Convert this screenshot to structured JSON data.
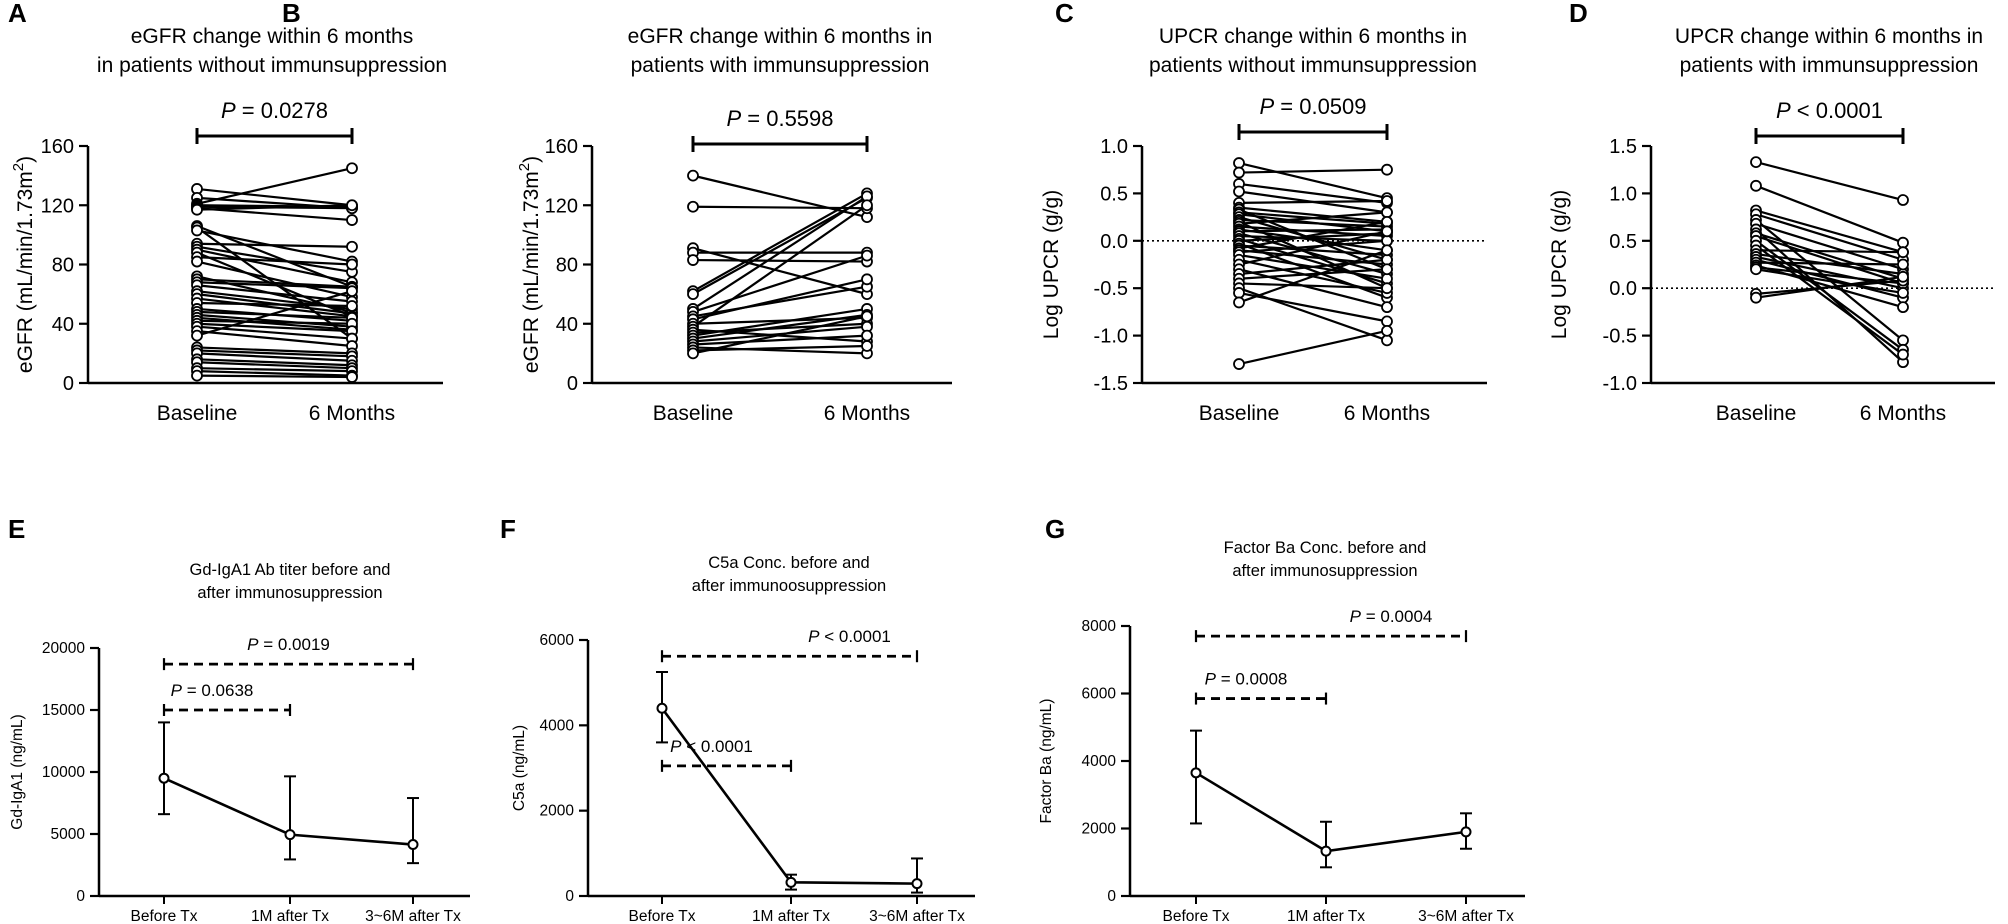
{
  "chart_data": [
    {
      "panel": "A",
      "type": "paired-line",
      "title_lines": [
        "eGFR change  within 6 months",
        "in patients without immunsuppression"
      ],
      "ylabel": "eGFR (mL/min/1.73m",
      "ylabel_sup": "2",
      "ylabel_end": ")",
      "ylim": [
        0,
        160
      ],
      "yticks": [
        "0",
        "40",
        "80",
        "120",
        "160"
      ],
      "categories": [
        "Baseline",
        "6 Months"
      ],
      "p_prefix": "P",
      "p_rest": " = 0.0278",
      "pairs": [
        [
          131,
          120
        ],
        [
          125,
          118
        ],
        [
          121,
          145
        ],
        [
          120,
          119
        ],
        [
          119,
          118
        ],
        [
          118,
          110
        ],
        [
          117,
          120
        ],
        [
          106,
          65
        ],
        [
          105,
          30
        ],
        [
          103,
          82
        ],
        [
          94,
          92
        ],
        [
          92,
          75
        ],
        [
          90,
          68
        ],
        [
          88,
          45
        ],
        [
          85,
          80
        ],
        [
          82,
          58
        ],
        [
          72,
          48
        ],
        [
          70,
          65
        ],
        [
          68,
          64
        ],
        [
          66,
          55
        ],
        [
          62,
          50
        ],
        [
          60,
          47
        ],
        [
          57,
          45
        ],
        [
          54,
          52
        ],
        [
          50,
          42
        ],
        [
          48,
          44
        ],
        [
          46,
          38
        ],
        [
          44,
          36
        ],
        [
          42,
          40
        ],
        [
          40,
          35
        ],
        [
          38,
          30
        ],
        [
          35,
          25
        ],
        [
          32,
          62
        ],
        [
          24,
          20
        ],
        [
          22,
          18
        ],
        [
          20,
          15
        ],
        [
          16,
          12
        ],
        [
          14,
          10
        ],
        [
          10,
          8
        ],
        [
          8,
          5
        ],
        [
          5,
          4
        ]
      ]
    },
    {
      "panel": "B",
      "type": "paired-line",
      "title_lines": [
        "eGFR change  within 6 months in",
        "patients  with immunsuppression"
      ],
      "ylabel": "eGFR (mL/min/1.73m",
      "ylabel_sup": "2",
      "ylabel_end": ")",
      "ylim": [
        0,
        160
      ],
      "yticks": [
        "0",
        "40",
        "80",
        "120",
        "160"
      ],
      "categories": [
        "Baseline",
        "6 Months"
      ],
      "p_prefix": "P",
      "p_rest": " = 0.5598",
      "pairs": [
        [
          140,
          112
        ],
        [
          119,
          118
        ],
        [
          91,
          60
        ],
        [
          88,
          88
        ],
        [
          83,
          82
        ],
        [
          62,
          128
        ],
        [
          60,
          125
        ],
        [
          50,
          126
        ],
        [
          48,
          86
        ],
        [
          45,
          65
        ],
        [
          43,
          70
        ],
        [
          40,
          44
        ],
        [
          38,
          120
        ],
        [
          36,
          28
        ],
        [
          34,
          40
        ],
        [
          32,
          50
        ],
        [
          30,
          46
        ],
        [
          28,
          38
        ],
        [
          26,
          32
        ],
        [
          24,
          20
        ],
        [
          22,
          25
        ],
        [
          20,
          45
        ]
      ]
    },
    {
      "panel": "C",
      "type": "paired-line",
      "title_lines": [
        "UPCR change  within 6 months in",
        "patients without immunsuppression"
      ],
      "ylabel": "Log UPCR (g/g)",
      "ylim": [
        -1.5,
        1.0
      ],
      "yticks": [
        "-1.5",
        "-1.0",
        "-0.5",
        "0.0",
        "0.5",
        "1.0"
      ],
      "categories": [
        "Baseline",
        "6 Months"
      ],
      "reference_line": 0,
      "p_prefix": "P",
      "p_rest": " = 0.0509",
      "pairs": [
        [
          0.82,
          0.45
        ],
        [
          0.72,
          0.75
        ],
        [
          0.6,
          0.4
        ],
        [
          0.52,
          0.3
        ],
        [
          0.4,
          0.42
        ],
        [
          0.35,
          0.2
        ],
        [
          0.33,
          -0.3
        ],
        [
          0.3,
          0.18
        ],
        [
          0.28,
          0.1
        ],
        [
          0.25,
          -0.2
        ],
        [
          0.22,
          0.15
        ],
        [
          0.2,
          -0.5
        ],
        [
          0.18,
          0.3
        ],
        [
          0.15,
          0.05
        ],
        [
          0.12,
          -0.1
        ],
        [
          0.1,
          0.12
        ],
        [
          0.08,
          -0.35
        ],
        [
          0.05,
          0.0
        ],
        [
          0.02,
          -0.45
        ],
        [
          0.0,
          0.08
        ],
        [
          -0.03,
          -0.6
        ],
        [
          -0.05,
          -0.15
        ],
        [
          -0.08,
          0.2
        ],
        [
          -0.1,
          -0.25
        ],
        [
          -0.12,
          0.0
        ],
        [
          -0.15,
          -0.4
        ],
        [
          -0.2,
          -0.55
        ],
        [
          -0.25,
          0.1
        ],
        [
          -0.3,
          -0.7
        ],
        [
          -0.35,
          -0.2
        ],
        [
          -0.4,
          -0.3
        ],
        [
          -0.45,
          -0.5
        ],
        [
          -0.5,
          -1.05
        ],
        [
          -0.55,
          -0.85
        ],
        [
          -0.65,
          -0.1
        ],
        [
          -1.3,
          -0.95
        ]
      ]
    },
    {
      "panel": "D",
      "type": "paired-line",
      "title_lines": [
        "UPCR change  within 6 months in",
        "patients  with immunsuppression"
      ],
      "ylabel": "Log UPCR (g/g)",
      "ylim": [
        -1.0,
        1.5
      ],
      "yticks": [
        "-1.0",
        "-0.5",
        "0.0",
        "0.5",
        "1.0",
        "1.5"
      ],
      "categories": [
        "Baseline",
        "6 Months"
      ],
      "reference_line": 0,
      "p_prefix": "P",
      "p_rest": " < 0.0001",
      "pairs": [
        [
          1.33,
          0.93
        ],
        [
          1.08,
          0.48
        ],
        [
          0.82,
          0.38
        ],
        [
          0.78,
          0.3
        ],
        [
          0.72,
          -0.55
        ],
        [
          0.68,
          0.2
        ],
        [
          0.62,
          -0.78
        ],
        [
          0.58,
          0.1
        ],
        [
          0.55,
          0.05
        ],
        [
          0.5,
          -0.65
        ],
        [
          0.45,
          -0.7
        ],
        [
          0.4,
          0.38
        ],
        [
          0.36,
          0.15
        ],
        [
          0.33,
          0.0
        ],
        [
          0.3,
          -0.1
        ],
        [
          0.27,
          0.25
        ],
        [
          0.24,
          -0.2
        ],
        [
          0.22,
          0.05
        ],
        [
          0.2,
          -0.05
        ],
        [
          -0.06,
          0.08
        ],
        [
          -0.1,
          0.12
        ]
      ]
    },
    {
      "panel": "E",
      "type": "line-errorbar",
      "title_lines": [
        "Gd-IgA1 Ab titer before and",
        "after immunosuppression"
      ],
      "ylabel": "Gd-IgA1 (ng/mL)",
      "ylim": [
        0,
        20000
      ],
      "yticks": [
        "0",
        "5000",
        "10000",
        "15000",
        "20000"
      ],
      "categories": [
        "Before Tx",
        "1M after Tx",
        "3~6M after Tx"
      ],
      "values": [
        9500,
        4950,
        4150
      ],
      "err_low": [
        6600,
        2950,
        2650
      ],
      "err_high": [
        14000,
        9650,
        7900
      ],
      "brackets": [
        {
          "from": 0,
          "to": 2,
          "y": 18700,
          "p_prefix": "P",
          "p_rest": " = 0.0019"
        },
        {
          "from": 0,
          "to": 1,
          "y": 15000,
          "p_prefix": "P",
          "p_rest": " = 0.0638"
        }
      ]
    },
    {
      "panel": "F",
      "type": "line-errorbar",
      "title_lines": [
        "C5a Conc. before and",
        "after immunoosuppression"
      ],
      "ylabel": "C5a (ng/mL)",
      "ylim": [
        0,
        6000
      ],
      "yticks": [
        "0",
        "2000",
        "4000",
        "6000"
      ],
      "categories": [
        "Before Tx",
        "1M after Tx",
        "3~6M after Tx"
      ],
      "values": [
        4400,
        320,
        290
      ],
      "err_low": [
        3600,
        150,
        80
      ],
      "err_high": [
        5250,
        500,
        880
      ],
      "brackets": [
        {
          "from": 0,
          "to": 2,
          "y": 5620,
          "p_prefix": "P",
          "p_rest": " < 0.0001"
        },
        {
          "from": 0,
          "to": 1,
          "y": 3050,
          "p_prefix": "P",
          "p_rest": " < 0.0001"
        }
      ]
    },
    {
      "panel": "G",
      "type": "line-errorbar",
      "title_lines": [
        "Factor Ba Conc. before and",
        "after immunosuppression"
      ],
      "ylabel": "Factor Ba (ng/mL)",
      "ylim": [
        0,
        8000
      ],
      "yticks": [
        "0",
        "2000",
        "4000",
        "6000",
        "8000"
      ],
      "categories": [
        "Before Tx",
        "1M after Tx",
        "3~6M after Tx"
      ],
      "values": [
        3650,
        1330,
        1900
      ],
      "err_low": [
        2150,
        850,
        1400
      ],
      "err_high": [
        4900,
        2200,
        2450
      ],
      "brackets": [
        {
          "from": 0,
          "to": 2,
          "y": 7700,
          "p_prefix": "P",
          "p_rest": " = 0.0004"
        },
        {
          "from": 0,
          "to": 1,
          "y": 5850,
          "p_prefix": "P",
          "p_rest": " = 0.0008"
        }
      ]
    }
  ]
}
